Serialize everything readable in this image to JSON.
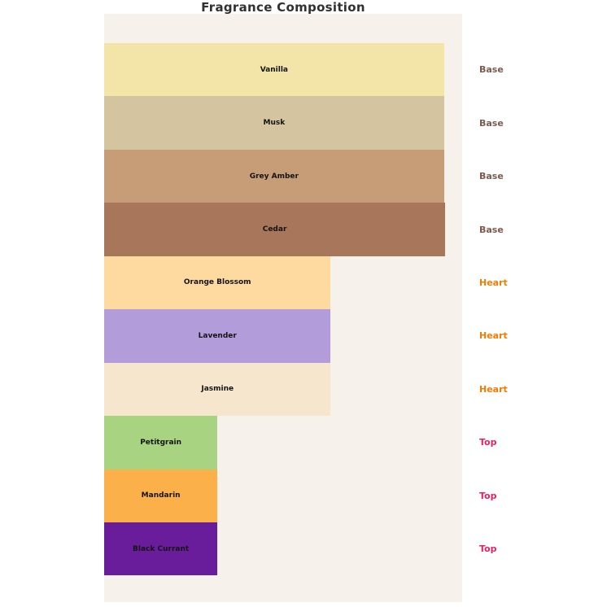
{
  "title": "Fragrance Composition",
  "chart_data": {
    "type": "bar",
    "orientation": "horizontal",
    "title": "Fragrance Composition",
    "x_max": 31.6,
    "grid": false,
    "legend": false,
    "plot_background": "#f6f1ea",
    "page_background": "#ffffff",
    "category_colors": {
      "Base": "#7d5a50",
      "Heart": "#f57c00",
      "Top": "#e91e63"
    },
    "items": [
      {
        "name": "Vanilla",
        "category": "Base",
        "value": 30,
        "color": "#f3e5a7"
      },
      {
        "name": "Musk",
        "category": "Base",
        "value": 30,
        "color": "#d4c5a0"
      },
      {
        "name": "Grey Amber",
        "category": "Base",
        "value": 30,
        "color": "#c79d77"
      },
      {
        "name": "Cedar",
        "category": "Base",
        "value": 30.1,
        "color": "#a8765a"
      },
      {
        "name": "Orange Blossom",
        "category": "Heart",
        "value": 20,
        "color": "#fed9a0"
      },
      {
        "name": "Lavender",
        "category": "Heart",
        "value": 20,
        "color": "#b29cd9"
      },
      {
        "name": "Jasmine",
        "category": "Heart",
        "value": 20,
        "color": "#f5e6cd"
      },
      {
        "name": "Petitgrain",
        "category": "Top",
        "value": 10,
        "color": "#a8d481"
      },
      {
        "name": "Mandarin",
        "category": "Top",
        "value": 10,
        "color": "#fcb04a"
      },
      {
        "name": "Black Currant",
        "category": "Top",
        "value": 10,
        "color": "#6a1d9b"
      }
    ]
  }
}
